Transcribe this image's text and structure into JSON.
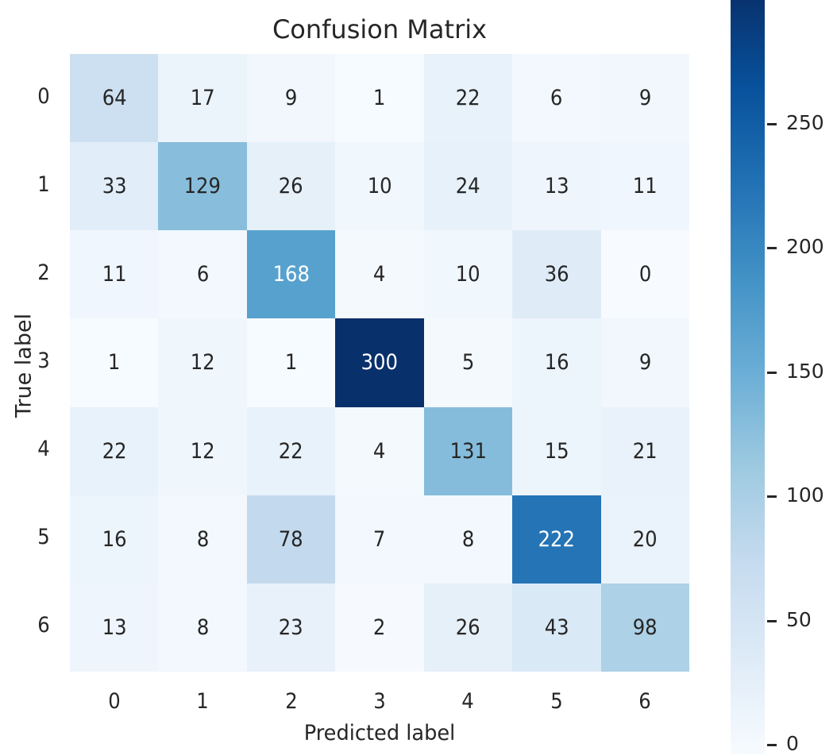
{
  "chart": {
    "title": "Confusion Matrix",
    "xlabel": "Predicted label",
    "ylabel": "True label",
    "x_ticks": [
      "0",
      "1",
      "2",
      "3",
      "4",
      "5",
      "6"
    ],
    "y_ticks": [
      "0",
      "1",
      "2",
      "3",
      "4",
      "5",
      "6"
    ],
    "colorbar_ticks": [
      "250",
      "200",
      "150",
      "100",
      "50",
      "0"
    ],
    "colormap": "Blues"
  },
  "chart_data": {
    "type": "heatmap",
    "title": "Confusion Matrix",
    "xlabel": "Predicted label",
    "ylabel": "True label",
    "x_categories": [
      "0",
      "1",
      "2",
      "3",
      "4",
      "5",
      "6"
    ],
    "y_categories": [
      "0",
      "1",
      "2",
      "3",
      "4",
      "5",
      "6"
    ],
    "values": [
      [
        64,
        17,
        9,
        1,
        22,
        6,
        9
      ],
      [
        33,
        129,
        26,
        10,
        24,
        13,
        11
      ],
      [
        11,
        6,
        168,
        4,
        10,
        36,
        0
      ],
      [
        1,
        12,
        1,
        300,
        5,
        16,
        9
      ],
      [
        22,
        12,
        22,
        4,
        131,
        15,
        21
      ],
      [
        16,
        8,
        78,
        7,
        8,
        222,
        20
      ],
      [
        13,
        8,
        23,
        2,
        26,
        43,
        98
      ]
    ],
    "colorbar": {
      "min": 0,
      "max": 300,
      "ticks": [
        0,
        50,
        100,
        150,
        200,
        250
      ],
      "colormap": "Blues"
    },
    "grid": false
  }
}
